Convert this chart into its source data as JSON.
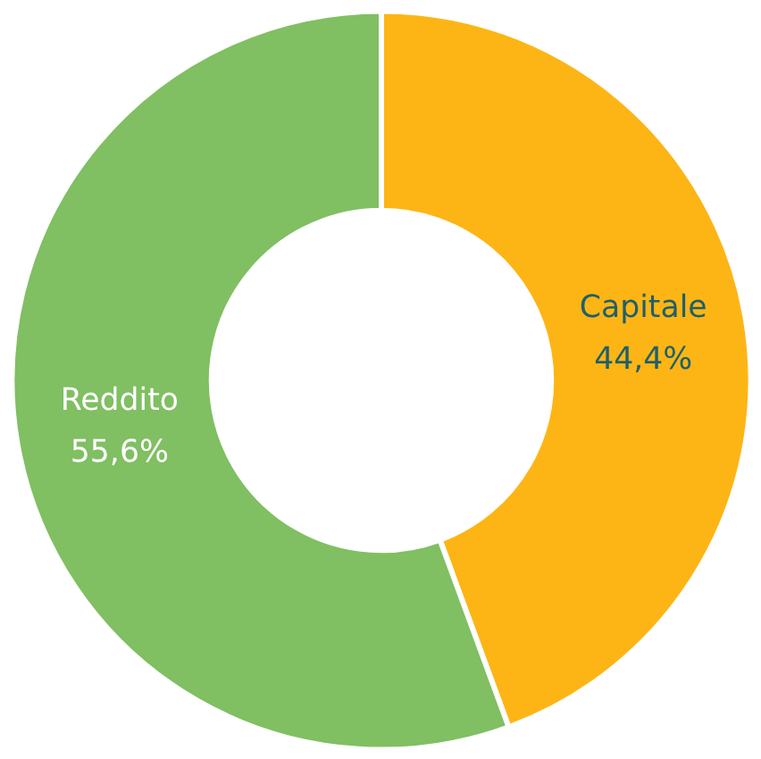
{
  "chart_data": {
    "type": "donut",
    "categories": [
      "Capitale",
      "Reddito"
    ],
    "values": [
      44.4,
      55.6
    ],
    "colors": [
      "#fdb515",
      "#80bf62"
    ],
    "value_labels": [
      "44,4%",
      "55,6%"
    ]
  }
}
